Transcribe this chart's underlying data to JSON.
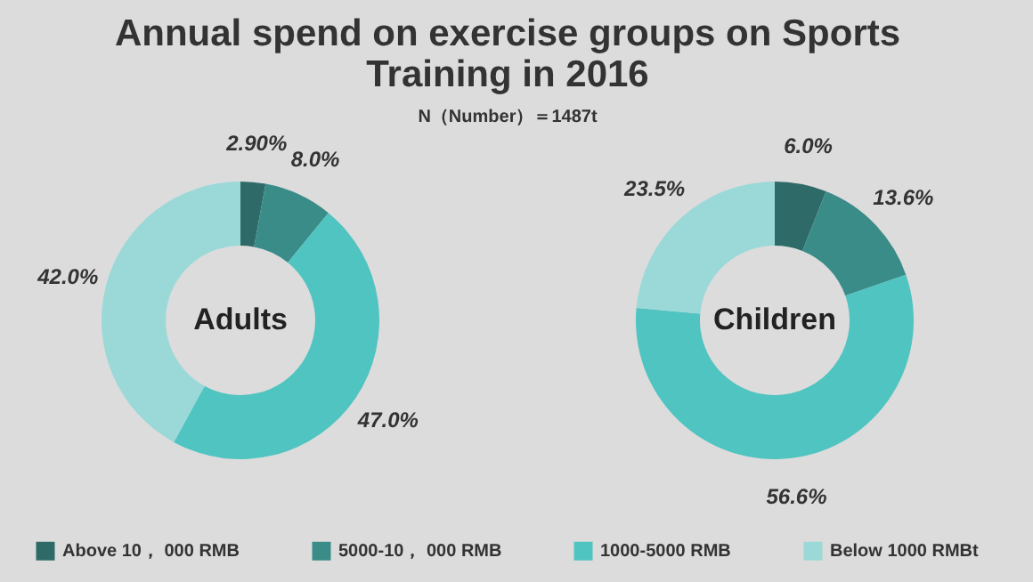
{
  "chart_data": {
    "type": "donut",
    "title": "Annual spend on exercise groups on Sports Training in 2016",
    "subtitle": "N（Number）＝1487t",
    "categories": [
      "Above 10， 000 RMB",
      "5000-10， 000 RMB",
      "1000-5000 RMB",
      "Below 1000 RMBt"
    ],
    "colors": [
      "#2e6b68",
      "#3a8c88",
      "#4fc4c0",
      "#9ad9d8"
    ],
    "legend": "bottom",
    "series": [
      {
        "name": "Adults",
        "values": [
          2.9,
          8.0,
          47.0,
          42.0
        ],
        "value_labels": [
          "2.90%",
          "8.0%",
          "47.0%",
          "42.0%"
        ]
      },
      {
        "name": "Children",
        "values": [
          6.0,
          13.6,
          56.6,
          23.5
        ],
        "value_labels": [
          "6.0%",
          "13.6%",
          "56.6%",
          "23.5%"
        ]
      }
    ]
  }
}
